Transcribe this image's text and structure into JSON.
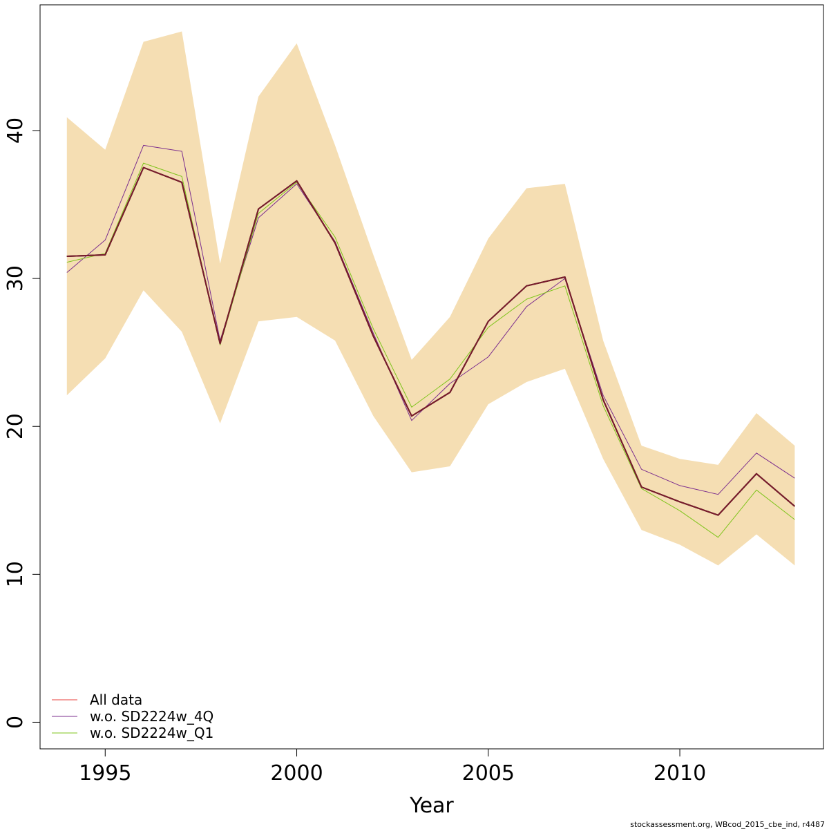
{
  "chart_data": {
    "type": "line",
    "xlabel": "Year",
    "ylabel": "",
    "title": "",
    "xlim": [
      1993.3,
      2013.75
    ],
    "ylim": [
      -1.8,
      48.5
    ],
    "x_ticks": [
      1995,
      2000,
      2005,
      2010
    ],
    "y_ticks": [
      0,
      10,
      20,
      30,
      40
    ],
    "grid": false,
    "legend_position": "bottom-left",
    "x": [
      1994,
      1995,
      1996,
      1997,
      1998,
      1999,
      2000,
      2001,
      2002,
      2003,
      2004,
      2005,
      2006,
      2007,
      2008,
      2009,
      2010,
      2011,
      2012,
      2013
    ],
    "band": {
      "color": "#F5DEB3",
      "lower": [
        22.1,
        24.6,
        29.2,
        26.4,
        20.2,
        27.1,
        27.4,
        25.8,
        20.7,
        16.9,
        17.3,
        21.5,
        23.0,
        23.9,
        17.8,
        13.0,
        12.0,
        10.6,
        12.7,
        10.6
      ],
      "upper": [
        40.9,
        38.7,
        46.0,
        46.7,
        31.0,
        42.3,
        45.9,
        39.0,
        31.6,
        24.5,
        27.4,
        32.7,
        36.1,
        36.4,
        25.8,
        18.7,
        17.8,
        17.4,
        20.9,
        18.7
      ]
    },
    "series": [
      {
        "name": "All data",
        "color": "#E8413C",
        "width": 1.2,
        "values": [
          31.5,
          31.6,
          37.5,
          36.5,
          25.6,
          34.7,
          36.6,
          32.4,
          26.1,
          20.7,
          22.3,
          27.1,
          29.5,
          30.1,
          21.8,
          15.9,
          14.9,
          14.0,
          16.8,
          14.6
        ]
      },
      {
        "name": "w.o. SD2224w_4Q",
        "color": "#7B2D8E",
        "width": 1.0,
        "values": [
          30.4,
          32.6,
          39.0,
          38.6,
          25.8,
          34.1,
          36.4,
          32.5,
          26.3,
          20.4,
          22.9,
          24.7,
          28.1,
          30.0,
          22.1,
          17.1,
          16.0,
          15.4,
          18.2,
          16.5
        ]
      },
      {
        "name": "w.o. SD2224w_Q1",
        "color": "#7FC41C",
        "width": 1.0,
        "values": [
          31.1,
          31.7,
          37.8,
          36.9,
          25.5,
          34.4,
          36.5,
          32.8,
          26.6,
          21.3,
          23.2,
          26.7,
          28.6,
          29.5,
          21.4,
          15.8,
          14.3,
          12.5,
          15.7,
          13.7
        ]
      },
      {
        "name": "",
        "color": "#000000",
        "width": 2.0,
        "values": [
          31.5,
          31.6,
          37.5,
          36.5,
          25.6,
          34.7,
          36.6,
          32.4,
          26.1,
          20.7,
          22.3,
          27.1,
          29.5,
          30.1,
          21.8,
          15.9,
          14.9,
          14.0,
          16.8,
          14.6
        ]
      },
      {
        "name": "",
        "color": "#7A1A2C",
        "width": 2.0,
        "values": [
          31.5,
          31.6,
          37.5,
          36.5,
          25.6,
          34.7,
          36.6,
          32.4,
          26.1,
          20.7,
          22.3,
          27.1,
          29.5,
          30.1,
          21.8,
          15.9,
          14.9,
          14.0,
          16.8,
          14.6
        ]
      }
    ],
    "legend": [
      {
        "label": "All data",
        "color": "#E8413C"
      },
      {
        "label": "w.o. SD2224w_4Q",
        "color": "#7B2D8E"
      },
      {
        "label": "w.o. SD2224w_Q1",
        "color": "#7FC41C"
      }
    ],
    "credit": "stockassessment.org, WBcod_2015_cbe_ind, r4487"
  }
}
